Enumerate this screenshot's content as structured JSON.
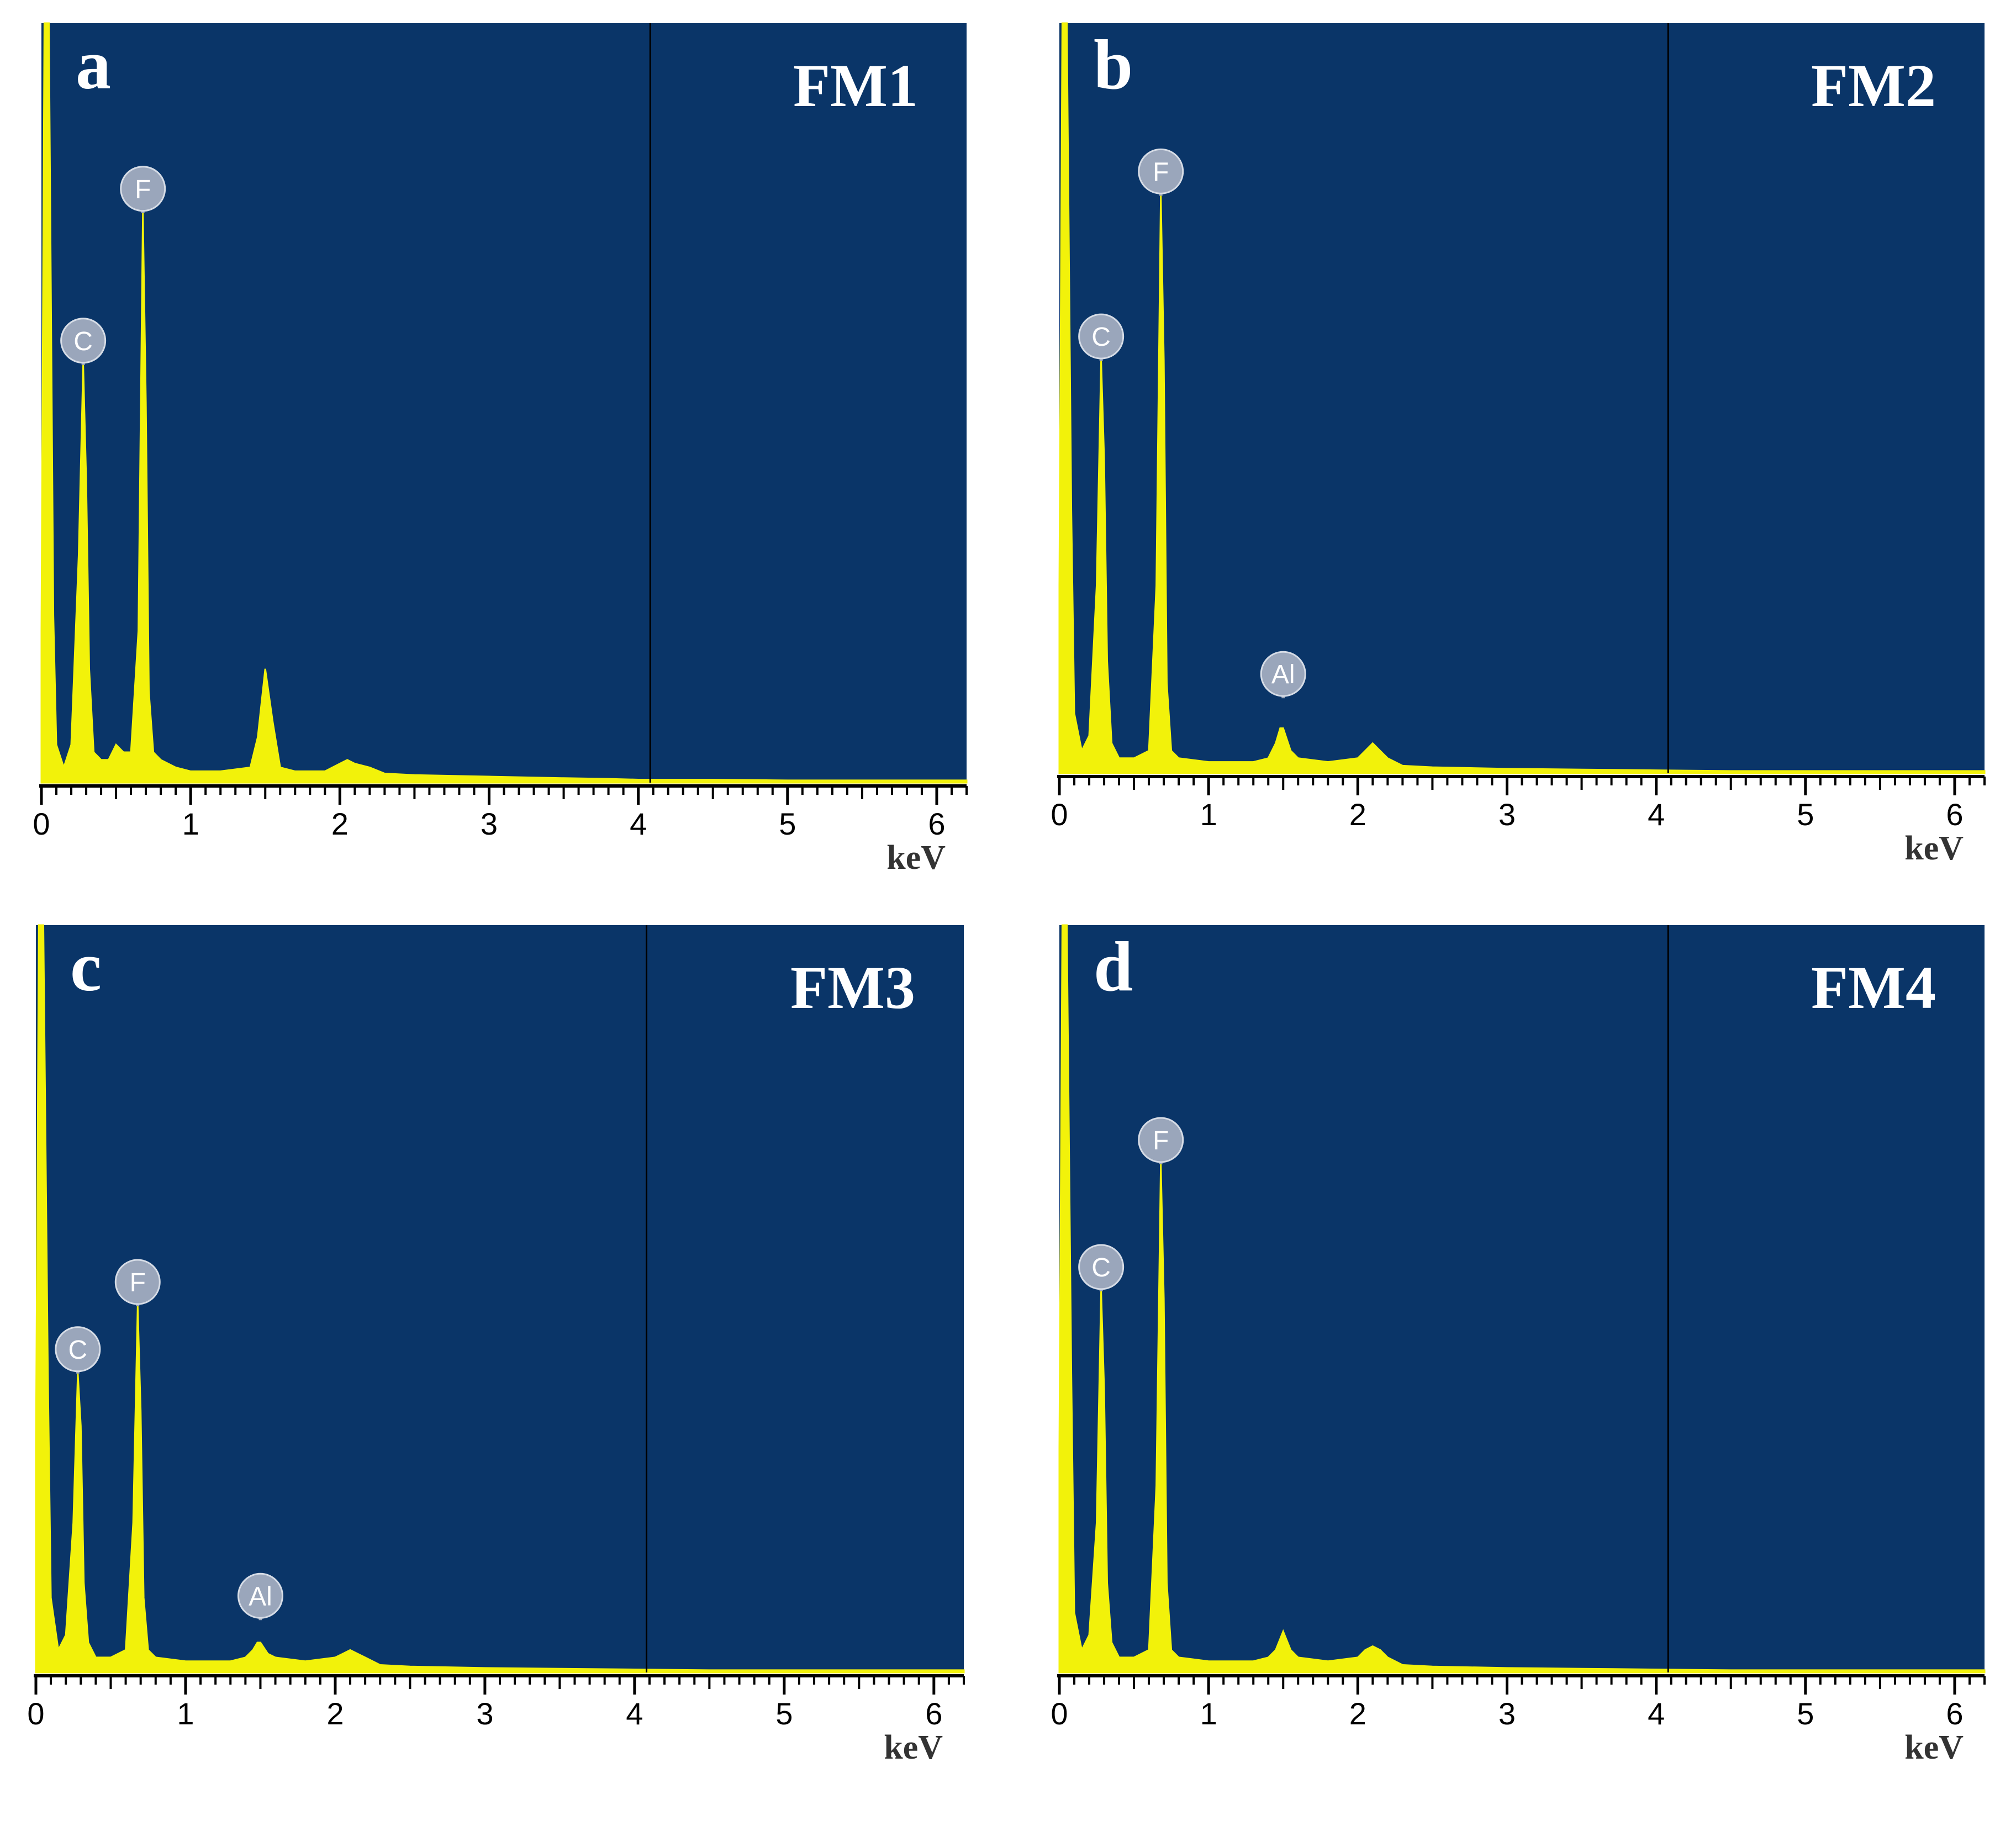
{
  "figure": {
    "colors": {
      "background": "#0a3568",
      "spectrum": "#f2f20a",
      "marker_fill": "#9aa6bb",
      "marker_text": "#ffffff",
      "axis": "#000000",
      "panel_text": "#ffffff",
      "unit_text": "#333333"
    }
  },
  "chart_data": [
    {
      "type": "area",
      "panel_letter": "a",
      "title": "FM1",
      "xlabel": "keV",
      "xlim": [
        0,
        6.2
      ],
      "ylim": [
        0,
        1
      ],
      "x_ticks": [
        "0",
        "1",
        "2",
        "3",
        "4",
        "5",
        "6"
      ],
      "cursor_x": 4.08,
      "series": [
        {
          "x": [
            0.0,
            0.02,
            0.05,
            0.08,
            0.1,
            0.15,
            0.2,
            0.25,
            0.28,
            0.3,
            0.32,
            0.35,
            0.4,
            0.45,
            0.5,
            0.55,
            0.6,
            0.65,
            0.68,
            0.7,
            0.72,
            0.75,
            0.8,
            0.9,
            1.0,
            1.2,
            1.4,
            1.45,
            1.5,
            1.55,
            1.6,
            1.7,
            1.9,
            2.0,
            2.05,
            2.1,
            2.2,
            2.3,
            2.5,
            3.0,
            3.5,
            3.8,
            4.0,
            4.5,
            5.0,
            5.5,
            6.0,
            6.2
          ],
          "y": [
            0.2,
            1.0,
            1.0,
            0.22,
            0.05,
            0.02,
            0.05,
            0.3,
            0.55,
            0.4,
            0.15,
            0.04,
            0.03,
            0.03,
            0.05,
            0.04,
            0.04,
            0.2,
            0.75,
            0.5,
            0.12,
            0.04,
            0.03,
            0.02,
            0.015,
            0.015,
            0.02,
            0.06,
            0.15,
            0.08,
            0.02,
            0.015,
            0.015,
            0.025,
            0.03,
            0.025,
            0.02,
            0.012,
            0.01,
            0.008,
            0.006,
            0.005,
            0.004,
            0.004,
            0.003,
            0.003,
            0.003,
            0.003
          ]
        }
      ],
      "markers": [
        {
          "label": "C",
          "x": 0.28,
          "y": 0.55
        },
        {
          "label": "F",
          "x": 0.68,
          "y": 0.75
        }
      ]
    },
    {
      "type": "area",
      "panel_letter": "b",
      "title": "FM2",
      "xlabel": "keV",
      "xlim": [
        0,
        6.2
      ],
      "ylim": [
        0,
        1
      ],
      "x_ticks": [
        "0",
        "1",
        "2",
        "3",
        "4",
        "5",
        "6"
      ],
      "cursor_x": 4.08,
      "series": [
        {
          "x": [
            0.0,
            0.02,
            0.05,
            0.08,
            0.1,
            0.15,
            0.2,
            0.25,
            0.28,
            0.3,
            0.32,
            0.35,
            0.4,
            0.5,
            0.6,
            0.65,
            0.68,
            0.7,
            0.72,
            0.75,
            0.8,
            1.0,
            1.3,
            1.4,
            1.45,
            1.48,
            1.5,
            1.55,
            1.6,
            1.8,
            2.0,
            2.05,
            2.1,
            2.15,
            2.2,
            2.3,
            2.5,
            3.0,
            3.5,
            4.0,
            4.5,
            5.0,
            5.5,
            6.0,
            6.2
          ],
          "y": [
            0.25,
            1.0,
            1.0,
            0.35,
            0.08,
            0.03,
            0.05,
            0.25,
            0.55,
            0.42,
            0.15,
            0.04,
            0.02,
            0.02,
            0.03,
            0.25,
            0.77,
            0.55,
            0.12,
            0.03,
            0.02,
            0.015,
            0.015,
            0.02,
            0.04,
            0.06,
            0.06,
            0.03,
            0.02,
            0.015,
            0.02,
            0.03,
            0.04,
            0.03,
            0.02,
            0.01,
            0.008,
            0.006,
            0.005,
            0.004,
            0.003,
            0.003,
            0.003,
            0.003,
            0.003
          ]
        }
      ],
      "markers": [
        {
          "label": "C",
          "x": 0.28,
          "y": 0.55
        },
        {
          "label": "F",
          "x": 0.68,
          "y": 0.77
        },
        {
          "label": "Al",
          "x": 1.5,
          "y": 0.1
        }
      ]
    },
    {
      "type": "area",
      "panel_letter": "c",
      "title": "FM3",
      "xlabel": "keV",
      "xlim": [
        0,
        6.2
      ],
      "ylim": [
        0,
        1
      ],
      "x_ticks": [
        "0",
        "1",
        "2",
        "3",
        "4",
        "5",
        "6"
      ],
      "cursor_x": 4.08,
      "series": [
        {
          "x": [
            0.0,
            0.02,
            0.05,
            0.08,
            0.1,
            0.15,
            0.2,
            0.25,
            0.28,
            0.3,
            0.32,
            0.35,
            0.4,
            0.5,
            0.6,
            0.65,
            0.68,
            0.7,
            0.72,
            0.75,
            0.8,
            1.0,
            1.3,
            1.4,
            1.45,
            1.48,
            1.5,
            1.55,
            1.6,
            1.8,
            2.0,
            2.05,
            2.1,
            2.15,
            2.2,
            2.3,
            2.5,
            3.0,
            3.5,
            4.0,
            4.5,
            5.0,
            5.5,
            6.0,
            6.2
          ],
          "y": [
            0.3,
            1.0,
            1.0,
            0.4,
            0.1,
            0.03,
            0.05,
            0.2,
            0.4,
            0.33,
            0.12,
            0.04,
            0.02,
            0.02,
            0.03,
            0.2,
            0.49,
            0.35,
            0.1,
            0.03,
            0.02,
            0.015,
            0.015,
            0.02,
            0.03,
            0.04,
            0.04,
            0.025,
            0.02,
            0.015,
            0.02,
            0.025,
            0.03,
            0.025,
            0.02,
            0.01,
            0.008,
            0.006,
            0.005,
            0.004,
            0.003,
            0.003,
            0.003,
            0.003,
            0.003
          ]
        }
      ],
      "markers": [
        {
          "label": "C",
          "x": 0.28,
          "y": 0.4
        },
        {
          "label": "F",
          "x": 0.68,
          "y": 0.49
        },
        {
          "label": "Al",
          "x": 1.5,
          "y": 0.07
        }
      ]
    },
    {
      "type": "area",
      "panel_letter": "d",
      "title": "FM4",
      "xlabel": "keV",
      "xlim": [
        0,
        6.2
      ],
      "ylim": [
        0,
        1
      ],
      "x_ticks": [
        "0",
        "1",
        "2",
        "3",
        "4",
        "5",
        "6"
      ],
      "cursor_x": 4.08,
      "series": [
        {
          "x": [
            0.0,
            0.02,
            0.05,
            0.08,
            0.1,
            0.15,
            0.2,
            0.25,
            0.28,
            0.3,
            0.32,
            0.35,
            0.4,
            0.5,
            0.6,
            0.65,
            0.68,
            0.7,
            0.72,
            0.75,
            0.8,
            1.0,
            1.3,
            1.4,
            1.45,
            1.5,
            1.55,
            1.6,
            1.8,
            2.0,
            2.05,
            2.1,
            2.15,
            2.2,
            2.3,
            2.5,
            3.0,
            3.5,
            4.0,
            4.5,
            5.0,
            5.5,
            6.0,
            6.2
          ],
          "y": [
            0.3,
            1.0,
            1.0,
            0.4,
            0.08,
            0.03,
            0.05,
            0.2,
            0.51,
            0.38,
            0.12,
            0.04,
            0.02,
            0.02,
            0.03,
            0.25,
            0.68,
            0.5,
            0.12,
            0.03,
            0.02,
            0.015,
            0.015,
            0.02,
            0.03,
            0.055,
            0.03,
            0.02,
            0.015,
            0.02,
            0.03,
            0.035,
            0.03,
            0.02,
            0.01,
            0.008,
            0.006,
            0.005,
            0.004,
            0.003,
            0.003,
            0.003,
            0.003,
            0.003
          ]
        }
      ],
      "markers": [
        {
          "label": "C",
          "x": 0.28,
          "y": 0.51
        },
        {
          "label": "F",
          "x": 0.68,
          "y": 0.68
        }
      ]
    }
  ]
}
